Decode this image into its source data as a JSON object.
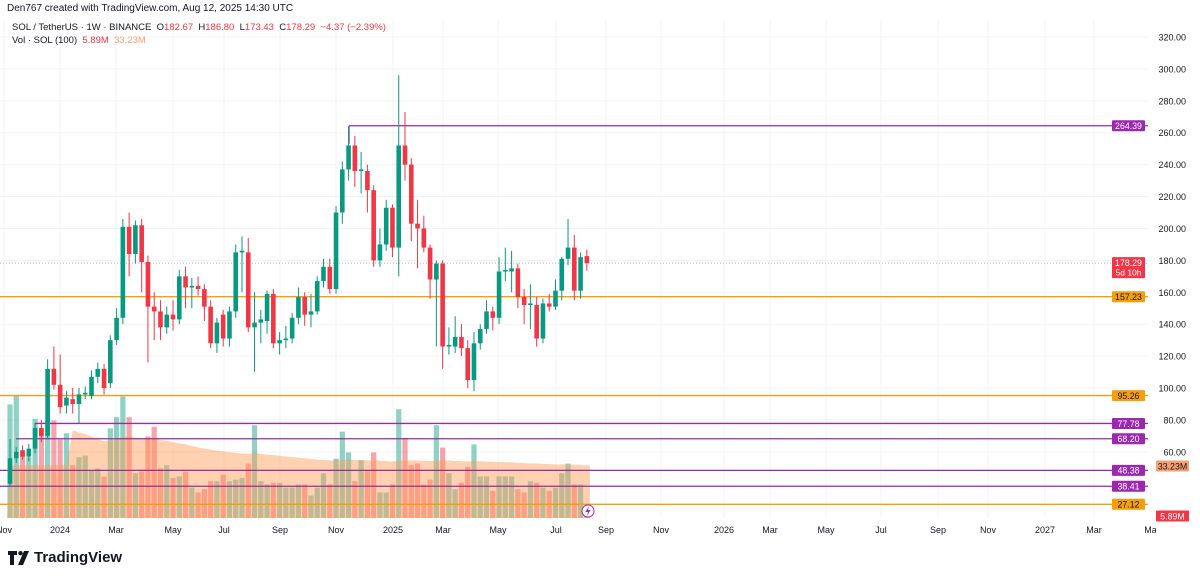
{
  "credit": "Den767 created with TradingView.com, Aug 12, 2025 14:30 UTC",
  "legend": {
    "symbol": "SOL / TetherUS · 1W · BINANCE",
    "o_label": "O",
    "o": "182.67",
    "h_label": "H",
    "h": "186.80",
    "l_label": "L",
    "l": "173.43",
    "c_label": "C",
    "c": "178.29",
    "change": "−4.37 (−2.39%)",
    "vol_label": "Vol · SOL (100)",
    "vol_value": "5.89M",
    "vol_ma": "33.23M"
  },
  "colors": {
    "up": "#089981",
    "down": "#f23645",
    "support": "#f59e0b",
    "resistance": "#9c27b0",
    "vol_ma": "#f7a072"
  },
  "price_axis": [
    "320.00",
    "300.00",
    "280.00",
    "260.00",
    "240.00",
    "220.00",
    "200.00",
    "180.00",
    "160.00",
    "140.00",
    "120.00",
    "100.00",
    "80.00",
    "60.00"
  ],
  "time_axis": [
    "Nov",
    "2024",
    "Mar",
    "May",
    "Jul",
    "Sep",
    "Nov",
    "2025",
    "Mar",
    "May",
    "Jul",
    "Sep",
    "Nov",
    "2026",
    "Mar",
    "May",
    "Jul",
    "Sep",
    "Nov",
    "2027",
    "Mar",
    "Mar"
  ],
  "levels": [
    {
      "value": "264.39",
      "kind": "resistance"
    },
    {
      "value": "157.23",
      "kind": "support"
    },
    {
      "value": "95.26",
      "kind": "support"
    },
    {
      "value": "77.78",
      "kind": "resistance"
    },
    {
      "value": "68.20",
      "kind": "resistance"
    },
    {
      "value": "48.38",
      "kind": "resistance"
    },
    {
      "value": "38.41",
      "kind": "resistance"
    },
    {
      "value": "27.12",
      "kind": "support"
    }
  ],
  "last_price": {
    "value": "178.29",
    "countdown": "5d 10h"
  },
  "vol_tags": {
    "ma": "33.23M",
    "last": "5.89M"
  },
  "chart_data": {
    "type": "candlestick",
    "interval": "1W",
    "ylim": [
      20,
      330
    ],
    "candles_ohlc": [
      [
        40,
        68,
        38,
        56
      ],
      [
        56,
        63,
        53,
        60
      ],
      [
        61,
        64,
        55,
        57
      ],
      [
        57,
        65,
        54,
        62
      ],
      [
        62,
        78,
        59,
        75
      ],
      [
        75,
        80,
        66,
        70
      ],
      [
        70,
        118,
        68,
        112
      ],
      [
        112,
        126,
        99,
        102
      ],
      [
        102,
        121,
        84,
        88
      ],
      [
        89,
        98,
        84,
        94
      ],
      [
        93,
        100,
        84,
        90
      ],
      [
        90,
        100,
        78,
        96
      ],
      [
        96,
        101,
        93,
        97
      ],
      [
        95,
        111,
        93,
        107
      ],
      [
        107,
        116,
        103,
        112
      ],
      [
        112,
        115,
        96,
        100
      ],
      [
        103,
        133,
        100,
        130
      ],
      [
        130,
        150,
        127,
        144
      ],
      [
        144,
        206,
        140,
        201
      ],
      [
        201,
        210,
        170,
        184
      ],
      [
        184,
        205,
        178,
        202
      ],
      [
        202,
        206,
        160,
        179
      ],
      [
        179,
        183,
        116,
        151
      ],
      [
        151,
        160,
        130,
        148
      ],
      [
        148,
        155,
        130,
        138
      ],
      [
        138,
        151,
        134,
        146
      ],
      [
        146,
        155,
        136,
        143
      ],
      [
        143,
        174,
        140,
        170
      ],
      [
        170,
        176,
        150,
        163
      ],
      [
        163,
        169,
        150,
        164
      ],
      [
        164,
        170,
        158,
        162
      ],
      [
        162,
        165,
        142,
        151
      ],
      [
        151,
        155,
        125,
        128
      ],
      [
        128,
        144,
        122,
        141
      ],
      [
        146,
        149,
        126,
        131
      ],
      [
        131,
        151,
        126,
        148
      ],
      [
        148,
        190,
        144,
        185
      ],
      [
        185,
        195,
        160,
        186
      ],
      [
        185,
        194,
        135,
        138
      ],
      [
        138,
        160,
        110,
        141
      ],
      [
        141,
        149,
        128,
        143
      ],
      [
        142,
        161,
        134,
        159
      ],
      [
        159,
        162,
        125,
        128
      ],
      [
        128,
        135,
        121,
        130
      ],
      [
        130,
        139,
        125,
        131
      ],
      [
        131,
        147,
        128,
        144
      ],
      [
        144,
        163,
        140,
        157
      ],
      [
        157,
        160,
        139,
        146
      ],
      [
        146,
        159,
        138,
        148
      ],
      [
        148,
        170,
        146,
        167
      ],
      [
        167,
        181,
        163,
        176
      ],
      [
        176,
        181,
        159,
        162
      ],
      [
        162,
        214,
        159,
        210
      ],
      [
        210,
        242,
        203,
        237
      ],
      [
        237,
        264,
        230,
        252
      ],
      [
        252,
        258,
        226,
        236
      ],
      [
        236,
        248,
        222,
        237
      ],
      [
        236,
        240,
        210,
        224
      ],
      [
        224,
        227,
        176,
        180
      ],
      [
        180,
        200,
        176,
        190
      ],
      [
        190,
        218,
        186,
        213
      ],
      [
        213,
        215,
        182,
        188
      ],
      [
        188,
        296,
        170,
        252
      ],
      [
        252,
        273,
        230,
        240
      ],
      [
        240,
        244,
        192,
        203
      ],
      [
        203,
        218,
        175,
        200
      ],
      [
        200,
        208,
        185,
        188
      ],
      [
        188,
        190,
        156,
        168
      ],
      [
        168,
        180,
        126,
        178
      ],
      [
        178,
        180,
        112,
        126
      ],
      [
        126,
        138,
        121,
        127
      ],
      [
        126,
        145,
        122,
        132
      ],
      [
        132,
        140,
        120,
        125
      ],
      [
        125,
        130,
        100,
        105
      ],
      [
        105,
        135,
        98,
        128
      ],
      [
        128,
        140,
        124,
        137
      ],
      [
        137,
        155,
        134,
        148
      ],
      [
        148,
        151,
        136,
        144
      ],
      [
        144,
        182,
        140,
        173
      ],
      [
        173,
        188,
        167,
        174
      ],
      [
        173,
        186,
        160,
        175
      ],
      [
        175,
        178,
        150,
        157
      ],
      [
        157,
        162,
        140,
        152
      ],
      [
        152,
        165,
        137,
        153
      ],
      [
        152,
        157,
        126,
        131
      ],
      [
        131,
        156,
        128,
        153
      ],
      [
        153,
        159,
        148,
        151
      ],
      [
        151,
        168,
        149,
        161
      ],
      [
        161,
        182,
        155,
        181
      ],
      [
        181,
        206,
        177,
        188
      ],
      [
        188,
        196,
        155,
        161
      ],
      [
        161,
        185,
        156,
        182
      ],
      [
        182.67,
        186.8,
        173.43,
        178.29
      ]
    ],
    "volume_millions": [
      71,
      77,
      42,
      38,
      62,
      56,
      61,
      61,
      49,
      53,
      33,
      38,
      39,
      30,
      31,
      26,
      56,
      63,
      76,
      63,
      28,
      29,
      51,
      57,
      31,
      33,
      25,
      26,
      29,
      19,
      16,
      18,
      23,
      23,
      27,
      23,
      24,
      25,
      34,
      58,
      23,
      21,
      22,
      22,
      19,
      19,
      21,
      21,
      14,
      19,
      28,
      21,
      37,
      54,
      41,
      23,
      36,
      30,
      41,
      16,
      16,
      21,
      68,
      50,
      33,
      34,
      21,
      24,
      58,
      44,
      28,
      18,
      22,
      32,
      46,
      26,
      26,
      17,
      26,
      26,
      26,
      18,
      16,
      23,
      22,
      19,
      17,
      19,
      28,
      34,
      21,
      21,
      5.89
    ]
  },
  "logo_text": "TradingView"
}
